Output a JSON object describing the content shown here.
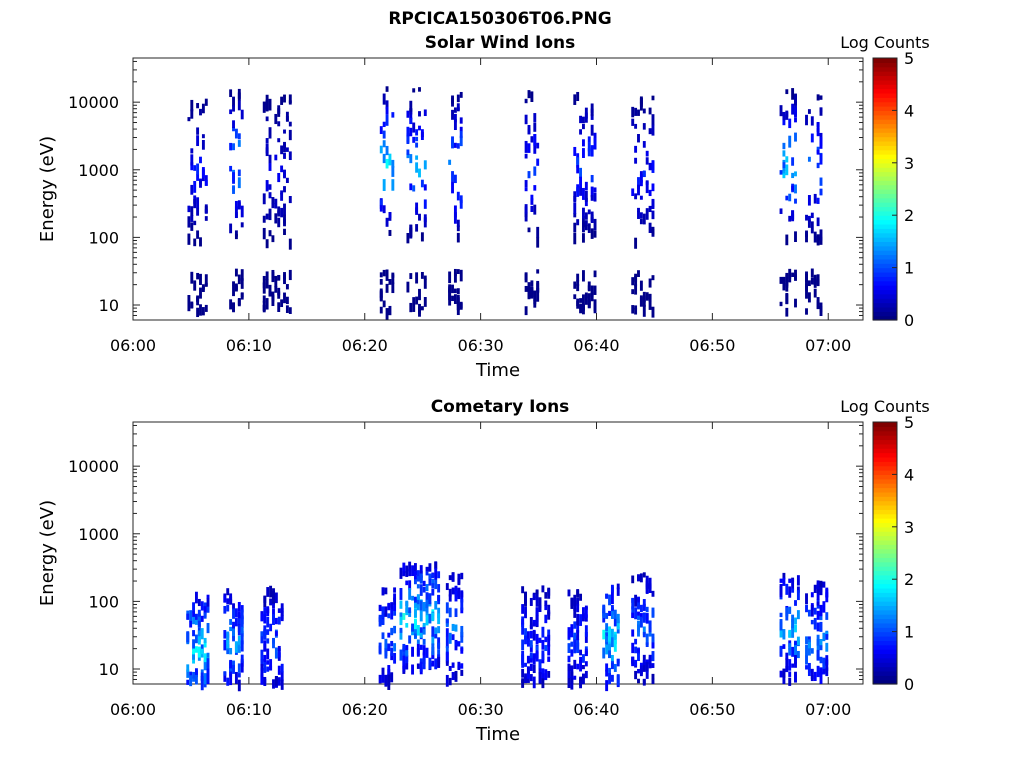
{
  "figure_title": "RPCICA150306T06.PNG",
  "chart_data": [
    {
      "type": "heatmap",
      "title": "Solar Wind Ions",
      "xlabel": "Time",
      "ylabel": "Energy (eV)",
      "x_ticks": [
        "06:00",
        "06:10",
        "06:20",
        "06:30",
        "06:40",
        "06:50",
        "07:00"
      ],
      "y_ticks": [
        "10",
        "100",
        "1000",
        "10000"
      ],
      "y_scale": "log",
      "ylim": [
        6,
        45000
      ],
      "xlim_minutes": [
        0,
        63
      ],
      "colorbar": {
        "label": "Log Counts",
        "ticks": [
          "0",
          "1",
          "2",
          "3",
          "4",
          "5"
        ],
        "range": [
          0,
          5
        ],
        "colormap": "jet"
      },
      "bursts": [
        {
          "t_start": 4.7,
          "t_end": 6.3,
          "peak_energy_ev": 1000,
          "max_log_counts": 0.8
        },
        {
          "t_start": 8.3,
          "t_end": 9.5,
          "peak_energy_ev": 1200,
          "max_log_counts": 1.6
        },
        {
          "t_start": 11.2,
          "t_end": 13.5,
          "peak_energy_ev": 1000,
          "max_log_counts": 0.6
        },
        {
          "t_start": 21.3,
          "t_end": 22.5,
          "peak_energy_ev": 1300,
          "max_log_counts": 1.8
        },
        {
          "t_start": 23.6,
          "t_end": 25.2,
          "peak_energy_ev": 1200,
          "max_log_counts": 1.6
        },
        {
          "t_start": 27.2,
          "t_end": 28.3,
          "peak_energy_ev": 1200,
          "max_log_counts": 1.5
        },
        {
          "t_start": 33.8,
          "t_end": 35.0,
          "peak_energy_ev": 1100,
          "max_log_counts": 1.0
        },
        {
          "t_start": 38.0,
          "t_end": 40.0,
          "peak_energy_ev": 1200,
          "max_log_counts": 1.0
        },
        {
          "t_start": 43.0,
          "t_end": 45.0,
          "peak_energy_ev": 900,
          "max_log_counts": 0.8
        },
        {
          "t_start": 55.8,
          "t_end": 57.2,
          "peak_energy_ev": 1200,
          "max_log_counts": 1.8
        },
        {
          "t_start": 58.0,
          "t_end": 59.5,
          "peak_energy_ev": 1100,
          "max_log_counts": 1.2
        }
      ]
    },
    {
      "type": "heatmap",
      "title": "Cometary Ions",
      "xlabel": "Time",
      "ylabel": "Energy (eV)",
      "x_ticks": [
        "06:00",
        "06:10",
        "06:20",
        "06:30",
        "06:40",
        "06:50",
        "07:00"
      ],
      "y_ticks": [
        "10",
        "100",
        "1000",
        "10000"
      ],
      "y_scale": "log",
      "ylim": [
        6,
        45000
      ],
      "xlim_minutes": [
        0,
        63
      ],
      "colorbar": {
        "label": "Log Counts",
        "ticks": [
          "0",
          "1",
          "2",
          "3",
          "4",
          "5"
        ],
        "range": [
          0,
          5
        ],
        "colormap": "jet"
      },
      "bursts": [
        {
          "t_start": 4.6,
          "t_end": 6.5,
          "peak_energy_ev": 20,
          "max_log_counts": 1.9
        },
        {
          "t_start": 7.8,
          "t_end": 9.5,
          "peak_energy_ev": 25,
          "max_log_counts": 1.4
        },
        {
          "t_start": 11.0,
          "t_end": 13.0,
          "peak_energy_ev": 25,
          "max_log_counts": 1.1
        },
        {
          "t_start": 21.2,
          "t_end": 22.5,
          "peak_energy_ev": 30,
          "max_log_counts": 1.3
        },
        {
          "t_start": 23.0,
          "t_end": 26.5,
          "peak_energy_ev": 60,
          "max_log_counts": 1.9
        },
        {
          "t_start": 27.0,
          "t_end": 28.5,
          "peak_energy_ev": 40,
          "max_log_counts": 1.3
        },
        {
          "t_start": 33.5,
          "t_end": 36.0,
          "peak_energy_ev": 25,
          "max_log_counts": 1.0
        },
        {
          "t_start": 37.5,
          "t_end": 39.2,
          "peak_energy_ev": 25,
          "max_log_counts": 1.0
        },
        {
          "t_start": 40.5,
          "t_end": 42.0,
          "peak_energy_ev": 30,
          "max_log_counts": 1.9
        },
        {
          "t_start": 43.0,
          "t_end": 45.0,
          "peak_energy_ev": 40,
          "max_log_counts": 1.2
        },
        {
          "t_start": 55.8,
          "t_end": 57.5,
          "peak_energy_ev": 40,
          "max_log_counts": 1.6
        },
        {
          "t_start": 58.0,
          "t_end": 60.0,
          "peak_energy_ev": 30,
          "max_log_counts": 1.5
        }
      ]
    }
  ]
}
